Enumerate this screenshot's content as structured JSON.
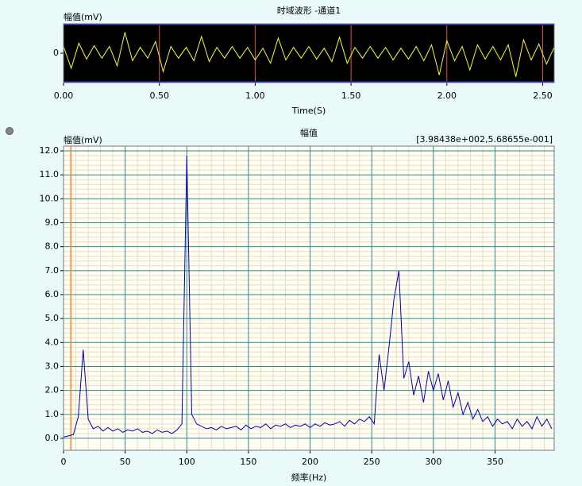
{
  "chart_data": [
    {
      "type": "line",
      "title": "时域波形 -通道1",
      "ylabel": "幅值(mV)",
      "xlabel": "Time(S)",
      "color": "#ffff00",
      "background": "#000000",
      "grid_color": "#e05050",
      "x": [
        0,
        0.04,
        0.08,
        0.12,
        0.16,
        0.2,
        0.24,
        0.28,
        0.32,
        0.36,
        0.4,
        0.44,
        0.48,
        0.52,
        0.56,
        0.6,
        0.64,
        0.68,
        0.72,
        0.76,
        0.8,
        0.84,
        0.88,
        0.92,
        0.96,
        1,
        1.04,
        1.08,
        1.12,
        1.16,
        1.2,
        1.24,
        1.28,
        1.32,
        1.36,
        1.4,
        1.44,
        1.48,
        1.52,
        1.56,
        1.6,
        1.64,
        1.68,
        1.72,
        1.76,
        1.8,
        1.84,
        1.88,
        1.92,
        1.96,
        2,
        2.04,
        2.08,
        2.12,
        2.16,
        2.2,
        2.24,
        2.28,
        2.32,
        2.36,
        2.4,
        2.44,
        2.48,
        2.52,
        2.56
      ],
      "values": [
        0.8,
        -1.8,
        1.2,
        -0.7,
        0.9,
        -0.6,
        0.8,
        -1.5,
        2.5,
        -0.9,
        0.7,
        -0.6,
        1.4,
        -2.2,
        0.8,
        -0.6,
        0.7,
        -0.9,
        2.0,
        -1.0,
        0.7,
        -0.6,
        0.8,
        -0.6,
        0.7,
        -0.8,
        0.6,
        -1.2,
        1.8,
        -0.8,
        0.7,
        -0.6,
        0.8,
        -0.7,
        0.6,
        -1.0,
        1.9,
        -1.2,
        0.7,
        -0.6,
        0.8,
        -0.6,
        0.7,
        -0.8,
        0.6,
        -0.7,
        0.8,
        -0.9,
        1.0,
        -2.6,
        1.5,
        -0.9,
        0.8,
        -2.0,
        1.0,
        -0.7,
        0.8,
        -0.8,
        1.0,
        -2.8,
        1.6,
        -0.8,
        1.1,
        -1.3,
        0.7
      ],
      "xlim": [
        0,
        2.56
      ],
      "ylim": [
        -3.5,
        3.5
      ],
      "xticks": [
        {
          "value": 0,
          "label": "0.00"
        },
        {
          "value": 0.5,
          "label": "0.50"
        },
        {
          "value": 1,
          "label": "1.00"
        },
        {
          "value": 1.5,
          "label": "1.50"
        },
        {
          "value": 2,
          "label": "2.00"
        },
        {
          "value": 2.5,
          "label": "2.50"
        }
      ],
      "yticks": [
        0
      ]
    },
    {
      "type": "line",
      "title": "幅值",
      "ylabel": "幅值(mV)",
      "xlabel": "频率(Hz)",
      "annotation": "[3.98438e+002,5.68655e-001]",
      "color": "#0000b0",
      "background": "#fffff4",
      "grid_color": "#2a8a8a",
      "cursor_x": 6,
      "x": [
        0,
        4,
        8,
        12,
        16,
        20,
        24,
        28,
        32,
        36,
        40,
        44,
        48,
        52,
        56,
        60,
        64,
        68,
        72,
        76,
        80,
        84,
        88,
        92,
        96,
        100,
        104,
        108,
        112,
        116,
        120,
        124,
        128,
        132,
        136,
        140,
        144,
        148,
        152,
        156,
        160,
        164,
        168,
        172,
        176,
        180,
        184,
        188,
        192,
        196,
        200,
        204,
        208,
        212,
        216,
        220,
        224,
        228,
        232,
        236,
        240,
        244,
        248,
        252,
        256,
        260,
        264,
        268,
        272,
        276,
        280,
        284,
        288,
        292,
        296,
        300,
        304,
        308,
        312,
        316,
        320,
        324,
        328,
        332,
        336,
        340,
        344,
        348,
        352,
        356,
        360,
        364,
        368,
        372,
        376,
        380,
        384,
        388,
        392,
        396
      ],
      "values": [
        0.05,
        0.1,
        0.15,
        0.9,
        3.7,
        0.8,
        0.4,
        0.5,
        0.3,
        0.45,
        0.3,
        0.4,
        0.25,
        0.35,
        0.3,
        0.4,
        0.25,
        0.3,
        0.2,
        0.35,
        0.25,
        0.3,
        0.2,
        0.35,
        0.6,
        11.8,
        1.0,
        0.6,
        0.5,
        0.4,
        0.45,
        0.35,
        0.5,
        0.4,
        0.45,
        0.5,
        0.35,
        0.55,
        0.4,
        0.5,
        0.45,
        0.6,
        0.4,
        0.55,
        0.5,
        0.6,
        0.45,
        0.55,
        0.5,
        0.6,
        0.45,
        0.6,
        0.5,
        0.65,
        0.55,
        0.6,
        0.7,
        0.5,
        0.75,
        0.6,
        0.8,
        0.7,
        0.9,
        0.6,
        3.5,
        2.0,
        3.8,
        5.8,
        7.0,
        2.5,
        3.2,
        1.8,
        2.6,
        1.5,
        2.8,
        2.0,
        2.7,
        1.6,
        2.4,
        1.3,
        1.9,
        1.0,
        1.5,
        0.8,
        1.2,
        0.7,
        0.9,
        0.5,
        0.8,
        0.6,
        0.7,
        0.4,
        0.8,
        0.5,
        0.7,
        0.4,
        0.9,
        0.5,
        0.8,
        0.4
      ],
      "xlim": [
        0,
        398
      ],
      "ylim": [
        -0.5,
        12.2
      ],
      "xticks": [
        0,
        50,
        100,
        150,
        200,
        250,
        300,
        350
      ],
      "yticks": [
        {
          "value": 0,
          "label": "0.0"
        },
        {
          "value": 1,
          "label": "1.0"
        },
        {
          "value": 2,
          "label": "2.0"
        },
        {
          "value": 3,
          "label": "3.0"
        },
        {
          "value": 4,
          "label": "4.0"
        },
        {
          "value": 5,
          "label": "5.0"
        },
        {
          "value": 6,
          "label": "6.0"
        },
        {
          "value": 7,
          "label": "7.0"
        },
        {
          "value": 8,
          "label": "8.0"
        },
        {
          "value": 9,
          "label": "9.0"
        },
        {
          "value": 10,
          "label": "10.0"
        },
        {
          "value": 11,
          "label": "11.0"
        },
        {
          "value": 12,
          "label": "12.0"
        }
      ]
    }
  ]
}
